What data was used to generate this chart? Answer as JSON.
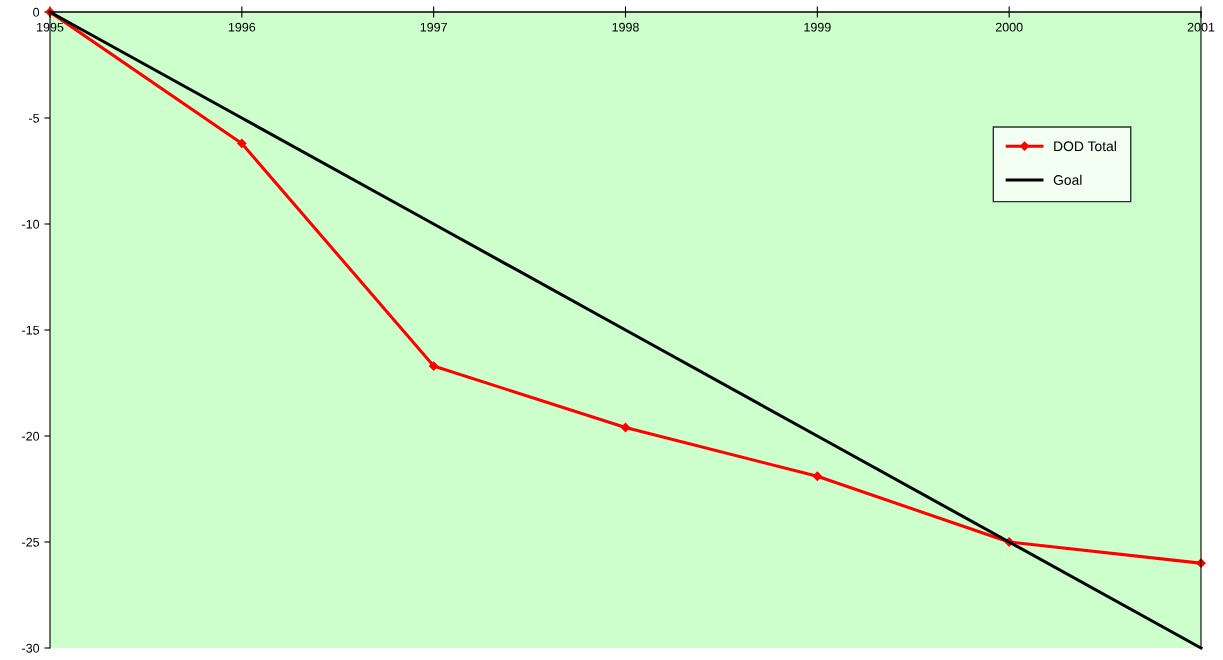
{
  "chart_data": {
    "type": "line",
    "x": [
      1995,
      1996,
      1997,
      1998,
      1999,
      2000,
      2001
    ],
    "series": [
      {
        "name": "DOD Total",
        "color": "#ff0000",
        "values": [
          0,
          -6.2,
          -16.7,
          -19.6,
          -21.9,
          -25.0,
          -26.0
        ],
        "marker": "diamond"
      },
      {
        "name": "Goal",
        "color": "#000000",
        "values": [
          0,
          -5,
          -10,
          -15,
          -20,
          -25,
          -30
        ],
        "marker": "none"
      }
    ],
    "xlim": [
      1995,
      2001
    ],
    "xticks": [
      1995,
      1996,
      1997,
      1998,
      1999,
      2000,
      2001
    ],
    "ylim": [
      -30,
      0
    ],
    "yticks": [
      0,
      -5,
      -10,
      -15,
      -20,
      -25,
      -30
    ],
    "grid": false,
    "legend": "top right",
    "line_style": "solid"
  }
}
